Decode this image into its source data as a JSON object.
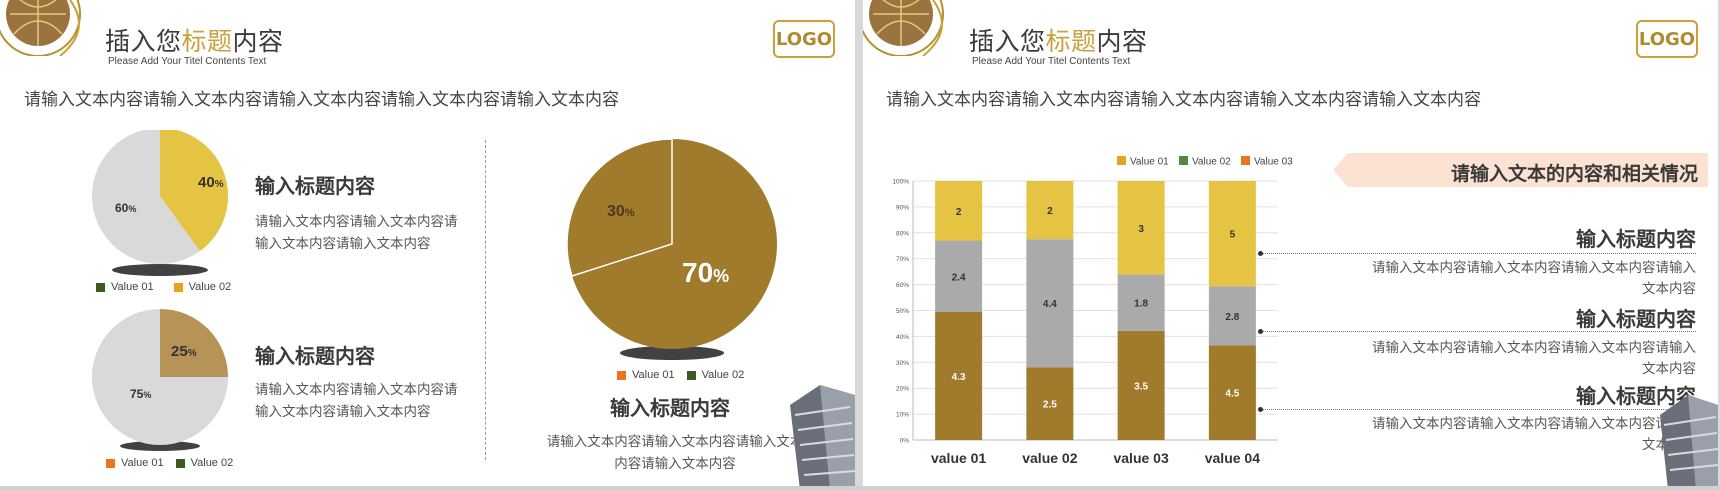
{
  "colors": {
    "gold": "#c9a13c",
    "olive": "#a07b2c",
    "yellow": "#e6c443",
    "grey": "#aaaaaa",
    "orange": "#e8761e",
    "green": "#3d5a20"
  },
  "left": {
    "title_pre": "插入您",
    "title_hl": "标题",
    "title_post": "内容",
    "subtitle": "Please Add Your Titel Contents Text",
    "logo": "LOGO",
    "intro": "请输入文本内容请输入文本内容请输入文本内容请输入文本内容请输入文本内容",
    "pie1": {
      "pct_big": "40",
      "pct_small": "60",
      "unit": "%",
      "legend": [
        "Value 01",
        "Value 02"
      ]
    },
    "pie2": {
      "pct_big": "25",
      "pct_small": "75",
      "unit": "%",
      "legend": [
        "Value 01",
        "Value 02"
      ]
    },
    "pie3": {
      "pct_big": "70",
      "pct_small": "30",
      "unit": "%",
      "legend": [
        "Value 01",
        "Value 02"
      ]
    },
    "sec1": {
      "title": "输入标题内容",
      "body1": "请输入文本内容请输入文本内容请",
      "body2": "输入文本内容请输入文本内容"
    },
    "sec2": {
      "title": "输入标题内容",
      "body1": "请输入文本内容请输入文本内容请",
      "body2": "输入文本内容请输入文本内容"
    },
    "sec3": {
      "title": "输入标题内容",
      "body1": "请输入文本内容请输入文本内容请输入文本",
      "body2": "内容请输入文本内容"
    }
  },
  "right": {
    "title_pre": "插入您",
    "title_hl": "标题",
    "title_post": "内容",
    "subtitle": "Please Add Your Titel Contents Text",
    "logo": "LOGO",
    "intro": "请输入文本内容请输入文本内容请输入文本内容请输入文本内容请输入文本内容",
    "banner": "请输入文本的内容和相关情况",
    "items": [
      {
        "title": "输入标题内容",
        "body1": "请输入文本内容请输入文本内容请输入文本内容请输入",
        "body2": "文本内容"
      },
      {
        "title": "输入标题内容",
        "body1": "请输入文本内容请输入文本内容请输入文本内容请输入",
        "body2": "文本内容"
      },
      {
        "title": "输入标题内容",
        "body1": "请输入文本内容请输入文本内容请输入文本内容请输入",
        "body2": "文本内容"
      }
    ]
  },
  "chart_data": {
    "type": "bar",
    "stacked": "100%",
    "categories": [
      "value 01",
      "value 02",
      "value 03",
      "value 04"
    ],
    "series": [
      {
        "name": "Value 01",
        "values": [
          4.3,
          2.5,
          3.5,
          4.5
        ],
        "color": "#a07b2c"
      },
      {
        "name": "Value 02",
        "values": [
          2.4,
          4.4,
          1.8,
          2.8
        ],
        "color": "#aaaaaa"
      },
      {
        "name": "Value 03",
        "values": [
          2,
          2,
          3,
          5
        ],
        "color": "#e6c443"
      }
    ],
    "legend_labels": [
      "Value 01",
      "Value 02",
      "Value 03"
    ],
    "legend_colors": [
      "#e8a21e",
      "#4f8a3c",
      "#e8761e"
    ],
    "y_ticks": [
      "0%",
      "10%",
      "20%",
      "30%",
      "40%",
      "50%",
      "60%",
      "70%",
      "80%",
      "90%",
      "100%"
    ],
    "ylim": [
      0,
      100
    ],
    "grid": true,
    "legend_position": "top"
  }
}
